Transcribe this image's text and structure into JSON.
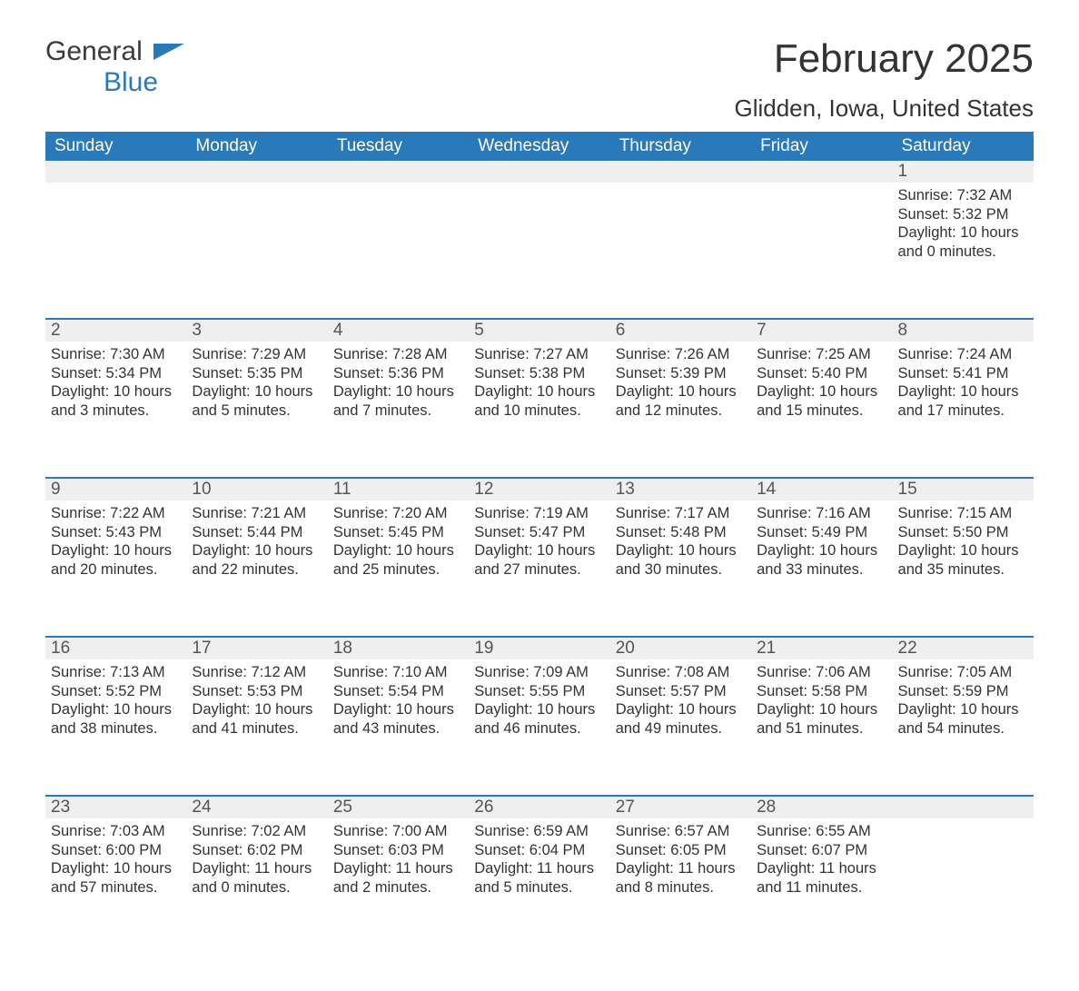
{
  "logo": {
    "text1": "General",
    "text2": "Blue",
    "accent_color": "#2a7ab9"
  },
  "title": "February 2025",
  "location": "Glidden, Iowa, United States",
  "colors": {
    "header_bg": "#2a7ab9",
    "header_text": "#ffffff",
    "daynum_bg": "#efefef",
    "row_border": "#2a7ab9",
    "body_text": "#333333"
  },
  "weekdays": [
    "Sunday",
    "Monday",
    "Tuesday",
    "Wednesday",
    "Thursday",
    "Friday",
    "Saturday"
  ],
  "weeks": [
    {
      "nums": [
        "",
        "",
        "",
        "",
        "",
        "",
        "1"
      ],
      "cells": [
        {},
        {},
        {},
        {},
        {},
        {},
        {
          "sunrise": "Sunrise: 7:32 AM",
          "sunset": "Sunset: 5:32 PM",
          "daylight": "Daylight: 10 hours and 0 minutes."
        }
      ]
    },
    {
      "nums": [
        "2",
        "3",
        "4",
        "5",
        "6",
        "7",
        "8"
      ],
      "cells": [
        {
          "sunrise": "Sunrise: 7:30 AM",
          "sunset": "Sunset: 5:34 PM",
          "daylight": "Daylight: 10 hours and 3 minutes."
        },
        {
          "sunrise": "Sunrise: 7:29 AM",
          "sunset": "Sunset: 5:35 PM",
          "daylight": "Daylight: 10 hours and 5 minutes."
        },
        {
          "sunrise": "Sunrise: 7:28 AM",
          "sunset": "Sunset: 5:36 PM",
          "daylight": "Daylight: 10 hours and 7 minutes."
        },
        {
          "sunrise": "Sunrise: 7:27 AM",
          "sunset": "Sunset: 5:38 PM",
          "daylight": "Daylight: 10 hours and 10 minutes."
        },
        {
          "sunrise": "Sunrise: 7:26 AM",
          "sunset": "Sunset: 5:39 PM",
          "daylight": "Daylight: 10 hours and 12 minutes."
        },
        {
          "sunrise": "Sunrise: 7:25 AM",
          "sunset": "Sunset: 5:40 PM",
          "daylight": "Daylight: 10 hours and 15 minutes."
        },
        {
          "sunrise": "Sunrise: 7:24 AM",
          "sunset": "Sunset: 5:41 PM",
          "daylight": "Daylight: 10 hours and 17 minutes."
        }
      ]
    },
    {
      "nums": [
        "9",
        "10",
        "11",
        "12",
        "13",
        "14",
        "15"
      ],
      "cells": [
        {
          "sunrise": "Sunrise: 7:22 AM",
          "sunset": "Sunset: 5:43 PM",
          "daylight": "Daylight: 10 hours and 20 minutes."
        },
        {
          "sunrise": "Sunrise: 7:21 AM",
          "sunset": "Sunset: 5:44 PM",
          "daylight": "Daylight: 10 hours and 22 minutes."
        },
        {
          "sunrise": "Sunrise: 7:20 AM",
          "sunset": "Sunset: 5:45 PM",
          "daylight": "Daylight: 10 hours and 25 minutes."
        },
        {
          "sunrise": "Sunrise: 7:19 AM",
          "sunset": "Sunset: 5:47 PM",
          "daylight": "Daylight: 10 hours and 27 minutes."
        },
        {
          "sunrise": "Sunrise: 7:17 AM",
          "sunset": "Sunset: 5:48 PM",
          "daylight": "Daylight: 10 hours and 30 minutes."
        },
        {
          "sunrise": "Sunrise: 7:16 AM",
          "sunset": "Sunset: 5:49 PM",
          "daylight": "Daylight: 10 hours and 33 minutes."
        },
        {
          "sunrise": "Sunrise: 7:15 AM",
          "sunset": "Sunset: 5:50 PM",
          "daylight": "Daylight: 10 hours and 35 minutes."
        }
      ]
    },
    {
      "nums": [
        "16",
        "17",
        "18",
        "19",
        "20",
        "21",
        "22"
      ],
      "cells": [
        {
          "sunrise": "Sunrise: 7:13 AM",
          "sunset": "Sunset: 5:52 PM",
          "daylight": "Daylight: 10 hours and 38 minutes."
        },
        {
          "sunrise": "Sunrise: 7:12 AM",
          "sunset": "Sunset: 5:53 PM",
          "daylight": "Daylight: 10 hours and 41 minutes."
        },
        {
          "sunrise": "Sunrise: 7:10 AM",
          "sunset": "Sunset: 5:54 PM",
          "daylight": "Daylight: 10 hours and 43 minutes."
        },
        {
          "sunrise": "Sunrise: 7:09 AM",
          "sunset": "Sunset: 5:55 PM",
          "daylight": "Daylight: 10 hours and 46 minutes."
        },
        {
          "sunrise": "Sunrise: 7:08 AM",
          "sunset": "Sunset: 5:57 PM",
          "daylight": "Daylight: 10 hours and 49 minutes."
        },
        {
          "sunrise": "Sunrise: 7:06 AM",
          "sunset": "Sunset: 5:58 PM",
          "daylight": "Daylight: 10 hours and 51 minutes."
        },
        {
          "sunrise": "Sunrise: 7:05 AM",
          "sunset": "Sunset: 5:59 PM",
          "daylight": "Daylight: 10 hours and 54 minutes."
        }
      ]
    },
    {
      "nums": [
        "23",
        "24",
        "25",
        "26",
        "27",
        "28",
        ""
      ],
      "cells": [
        {
          "sunrise": "Sunrise: 7:03 AM",
          "sunset": "Sunset: 6:00 PM",
          "daylight": "Daylight: 10 hours and 57 minutes."
        },
        {
          "sunrise": "Sunrise: 7:02 AM",
          "sunset": "Sunset: 6:02 PM",
          "daylight": "Daylight: 11 hours and 0 minutes."
        },
        {
          "sunrise": "Sunrise: 7:00 AM",
          "sunset": "Sunset: 6:03 PM",
          "daylight": "Daylight: 11 hours and 2 minutes."
        },
        {
          "sunrise": "Sunrise: 6:59 AM",
          "sunset": "Sunset: 6:04 PM",
          "daylight": "Daylight: 11 hours and 5 minutes."
        },
        {
          "sunrise": "Sunrise: 6:57 AM",
          "sunset": "Sunset: 6:05 PM",
          "daylight": "Daylight: 11 hours and 8 minutes."
        },
        {
          "sunrise": "Sunrise: 6:55 AM",
          "sunset": "Sunset: 6:07 PM",
          "daylight": "Daylight: 11 hours and 11 minutes."
        },
        {}
      ]
    }
  ]
}
